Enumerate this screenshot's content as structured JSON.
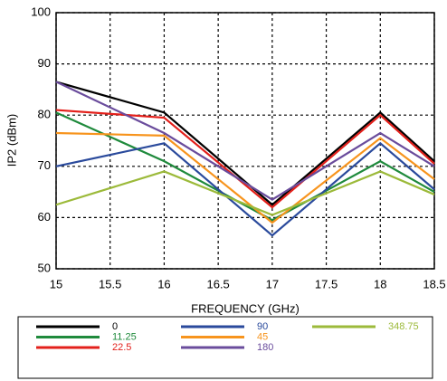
{
  "chart_data": {
    "type": "line",
    "x_label": "FREQUENCY (GHz)",
    "y_label": "IP2  (dBm)",
    "x": [
      15,
      16,
      17,
      18,
      18.5
    ],
    "xlim": [
      15,
      18.5
    ],
    "xticks": [
      15,
      15.5,
      16,
      16.5,
      17,
      17.5,
      18,
      18.5
    ],
    "ylim": [
      50,
      100
    ],
    "yticks": [
      50,
      60,
      70,
      80,
      90,
      100
    ],
    "grid": true,
    "series": [
      {
        "name": "0",
        "color": "#000000",
        "values": [
          86.5,
          80.5,
          62.5,
          80.5,
          71
        ]
      },
      {
        "name": "11.25",
        "color": "#1f8a3c",
        "values": [
          80.5,
          71,
          59.5,
          71,
          65
        ]
      },
      {
        "name": "22.5",
        "color": "#e3201b",
        "values": [
          81,
          79.5,
          62,
          80,
          70.5
        ]
      },
      {
        "name": "90",
        "color": "#2a4a9c",
        "values": [
          70,
          74.5,
          56.5,
          74.5,
          65.5
        ]
      },
      {
        "name": "45",
        "color": "#f7941d",
        "values": [
          76.5,
          76,
          59,
          75.5,
          67.5
        ]
      },
      {
        "name": "180",
        "color": "#6a4c9c",
        "values": [
          86.5,
          76.5,
          63.5,
          76.5,
          70
        ]
      },
      {
        "name": "348.75",
        "color": "#9cba3a",
        "values": [
          62.5,
          69,
          60.5,
          69,
          64.5
        ]
      }
    ]
  }
}
